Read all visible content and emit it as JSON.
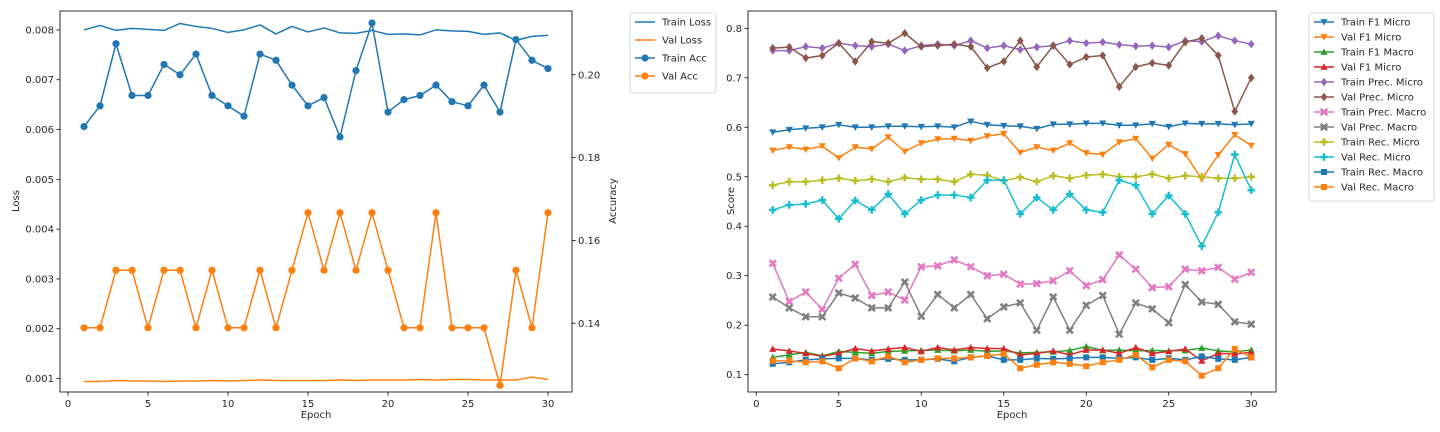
{
  "chart_data": [
    {
      "type": "line",
      "xlabel": "Epoch",
      "ylabel_left": "Loss",
      "ylabel_right": "Accuracy",
      "xlim": [
        -0.5,
        31.5
      ],
      "ylim_left": [
        0.00073,
        0.00838
      ],
      "ylim_right": [
        0.1234,
        0.2154
      ],
      "xticks": [
        "0",
        "5",
        "10",
        "15",
        "20",
        "25",
        "30"
      ],
      "yticks_left": [
        "0.001",
        "0.002",
        "0.003",
        "0.004",
        "0.005",
        "0.006",
        "0.007",
        "0.008"
      ],
      "yticks_right": [
        "0.14",
        "0.16",
        "0.18",
        "0.20"
      ],
      "legend_position": "right-outside-top",
      "x": [
        1,
        2,
        3,
        4,
        5,
        6,
        7,
        8,
        9,
        10,
        11,
        12,
        13,
        14,
        15,
        16,
        17,
        18,
        19,
        20,
        21,
        22,
        23,
        24,
        25,
        26,
        27,
        28,
        29,
        30
      ],
      "series": [
        {
          "name": "Train Loss",
          "axis": "left",
          "color": "#1f77b4",
          "marker": "none",
          "values": [
            0.008,
            0.00809,
            0.00799,
            0.00803,
            0.00801,
            0.00799,
            0.00813,
            0.00807,
            0.00803,
            0.00795,
            0.008,
            0.0081,
            0.00792,
            0.00807,
            0.00796,
            0.00804,
            0.00794,
            0.00793,
            0.00799,
            0.00791,
            0.00792,
            0.0079,
            0.008,
            0.00798,
            0.00797,
            0.00791,
            0.00794,
            0.00779,
            0.00787,
            0.00789
          ]
        },
        {
          "name": "Val Loss",
          "axis": "left",
          "color": "#ff7f0e",
          "marker": "none",
          "values": [
            0.00094,
            0.00094,
            0.00096,
            0.00095,
            0.00095,
            0.00094,
            0.00095,
            0.00095,
            0.00096,
            0.00095,
            0.00096,
            0.00097,
            0.00096,
            0.00096,
            0.00096,
            0.00096,
            0.00097,
            0.00096,
            0.00097,
            0.00097,
            0.00097,
            0.00098,
            0.00097,
            0.00098,
            0.00098,
            0.00097,
            0.00097,
            0.00097,
            0.00103,
            0.00098
          ]
        },
        {
          "name": "Train Acc",
          "axis": "right",
          "color": "#1f77b4",
          "marker": "circle",
          "values": [
            0.1875,
            0.1925,
            0.2075,
            0.195,
            0.195,
            0.2025,
            0.2,
            0.205,
            0.195,
            0.1925,
            0.19,
            0.205,
            0.2035,
            0.1975,
            0.1925,
            0.1945,
            0.185,
            0.201,
            0.2125,
            0.191,
            0.194,
            0.195,
            0.1975,
            0.1935,
            0.1925,
            0.1975,
            0.191,
            0.2085,
            0.2035,
            0.2015
          ]
        },
        {
          "name": "Val Acc",
          "axis": "right",
          "color": "#ff7f0e",
          "marker": "circle",
          "values": [
            0.1389,
            0.1389,
            0.1528,
            0.1528,
            0.1389,
            0.1528,
            0.1528,
            0.1389,
            0.1528,
            0.1389,
            0.1389,
            0.1528,
            0.1389,
            0.1528,
            0.1667,
            0.1528,
            0.1667,
            0.1528,
            0.1667,
            0.1528,
            0.1389,
            0.1389,
            0.1667,
            0.1389,
            0.1389,
            0.1389,
            0.125,
            0.1528,
            0.1389,
            0.1667
          ]
        }
      ]
    },
    {
      "type": "line",
      "xlabel": "Epoch",
      "ylabel": "Score",
      "xlim": [
        -0.5,
        31.5
      ],
      "ylim": [
        0.065,
        0.835
      ],
      "xticks": [
        "0",
        "5",
        "10",
        "15",
        "20",
        "25",
        "30"
      ],
      "yticks": [
        "0.1",
        "0.2",
        "0.3",
        "0.4",
        "0.5",
        "0.6",
        "0.7",
        "0.8"
      ],
      "legend_position": "right-outside-top",
      "x": [
        1,
        2,
        3,
        4,
        5,
        6,
        7,
        8,
        9,
        10,
        11,
        12,
        13,
        14,
        15,
        16,
        17,
        18,
        19,
        20,
        21,
        22,
        23,
        24,
        25,
        26,
        27,
        28,
        29,
        30
      ],
      "series": [
        {
          "name": "Train F1 Micro",
          "color": "#1f77b4",
          "marker": "tri_down",
          "values": [
            0.59,
            0.595,
            0.598,
            0.6,
            0.605,
            0.6,
            0.6,
            0.602,
            0.602,
            0.601,
            0.602,
            0.6,
            0.612,
            0.605,
            0.603,
            0.602,
            0.597,
            0.606,
            0.606,
            0.608,
            0.608,
            0.604,
            0.604,
            0.607,
            0.601,
            0.608,
            0.607,
            0.607,
            0.605,
            0.607
          ]
        },
        {
          "name": "Val F1 Micro",
          "color": "#ff7f0e",
          "marker": "tri_down",
          "values": [
            0.553,
            0.56,
            0.555,
            0.562,
            0.538,
            0.56,
            0.556,
            0.58,
            0.551,
            0.568,
            0.576,
            0.577,
            0.573,
            0.582,
            0.587,
            0.549,
            0.56,
            0.553,
            0.568,
            0.548,
            0.545,
            0.57,
            0.577,
            0.537,
            0.565,
            0.546,
            0.495,
            0.544,
            0.585,
            0.563
          ]
        },
        {
          "name": "Train F1 Macro",
          "color": "#2ca02c",
          "marker": "tri_up",
          "values": [
            0.135,
            0.14,
            0.145,
            0.138,
            0.147,
            0.145,
            0.143,
            0.147,
            0.148,
            0.149,
            0.15,
            0.148,
            0.15,
            0.147,
            0.148,
            0.144,
            0.145,
            0.146,
            0.149,
            0.157,
            0.149,
            0.15,
            0.148,
            0.149,
            0.148,
            0.149,
            0.154,
            0.148,
            0.146,
            0.15
          ]
        },
        {
          "name": "Val F1 Micro",
          "color": "#d62728",
          "marker": "tri_up",
          "values": [
            0.152,
            0.148,
            0.143,
            0.137,
            0.143,
            0.153,
            0.148,
            0.152,
            0.155,
            0.147,
            0.155,
            0.15,
            0.155,
            0.153,
            0.153,
            0.14,
            0.143,
            0.148,
            0.14,
            0.15,
            0.15,
            0.143,
            0.155,
            0.143,
            0.147,
            0.152,
            0.128,
            0.143,
            0.142,
            0.145
          ]
        },
        {
          "name": "Train Prec. Micro",
          "color": "#9467bd",
          "marker": "diamond",
          "values": [
            0.755,
            0.755,
            0.763,
            0.76,
            0.77,
            0.765,
            0.763,
            0.768,
            0.755,
            0.765,
            0.768,
            0.765,
            0.775,
            0.76,
            0.765,
            0.757,
            0.762,
            0.765,
            0.775,
            0.77,
            0.772,
            0.767,
            0.764,
            0.765,
            0.762,
            0.775,
            0.773,
            0.785,
            0.775,
            0.768
          ]
        },
        {
          "name": "Val Prec. Micro",
          "color": "#8c564b",
          "marker": "diamond",
          "values": [
            0.76,
            0.762,
            0.74,
            0.745,
            0.77,
            0.733,
            0.773,
            0.77,
            0.79,
            0.763,
            0.765,
            0.768,
            0.763,
            0.72,
            0.733,
            0.775,
            0.722,
            0.765,
            0.727,
            0.742,
            0.745,
            0.682,
            0.722,
            0.73,
            0.725,
            0.772,
            0.78,
            0.745,
            0.632,
            0.7
          ]
        },
        {
          "name": "Train Prec. Macro",
          "color": "#e377c2",
          "marker": "x",
          "values": [
            0.325,
            0.248,
            0.267,
            0.232,
            0.295,
            0.323,
            0.26,
            0.267,
            0.251,
            0.318,
            0.32,
            0.332,
            0.318,
            0.3,
            0.303,
            0.283,
            0.284,
            0.29,
            0.31,
            0.28,
            0.292,
            0.342,
            0.313,
            0.276,
            0.278,
            0.313,
            0.31,
            0.317,
            0.293,
            0.307
          ]
        },
        {
          "name": "Val Prec. Macro",
          "color": "#7f7f7f",
          "marker": "x",
          "values": [
            0.257,
            0.235,
            0.217,
            0.217,
            0.265,
            0.255,
            0.235,
            0.235,
            0.287,
            0.218,
            0.262,
            0.235,
            0.262,
            0.213,
            0.237,
            0.245,
            0.19,
            0.257,
            0.19,
            0.24,
            0.26,
            0.182,
            0.245,
            0.233,
            0.205,
            0.282,
            0.247,
            0.242,
            0.207,
            0.202
          ]
        },
        {
          "name": "Train Rec. Micro",
          "color": "#bcbd22",
          "marker": "plus",
          "values": [
            0.483,
            0.49,
            0.49,
            0.493,
            0.497,
            0.492,
            0.495,
            0.49,
            0.498,
            0.495,
            0.495,
            0.49,
            0.505,
            0.503,
            0.492,
            0.499,
            0.49,
            0.502,
            0.497,
            0.503,
            0.505,
            0.5,
            0.5,
            0.505,
            0.497,
            0.502,
            0.5,
            0.497,
            0.497,
            0.5
          ]
        },
        {
          "name": "Val Rec. Micro",
          "color": "#17becf",
          "marker": "plus",
          "values": [
            0.433,
            0.443,
            0.445,
            0.453,
            0.415,
            0.452,
            0.433,
            0.465,
            0.425,
            0.453,
            0.463,
            0.463,
            0.458,
            0.493,
            0.493,
            0.425,
            0.458,
            0.433,
            0.465,
            0.433,
            0.428,
            0.493,
            0.483,
            0.425,
            0.462,
            0.425,
            0.36,
            0.428,
            0.545,
            0.473
          ]
        },
        {
          "name": "Train Rec. Macro",
          "color": "#1f77b4",
          "marker": "square",
          "values": [
            0.122,
            0.125,
            0.13,
            0.132,
            0.133,
            0.133,
            0.13,
            0.132,
            0.13,
            0.13,
            0.132,
            0.127,
            0.135,
            0.138,
            0.13,
            0.13,
            0.133,
            0.132,
            0.133,
            0.135,
            0.135,
            0.133,
            0.135,
            0.13,
            0.133,
            0.13,
            0.137,
            0.132,
            0.13,
            0.135
          ]
        },
        {
          "name": "Val Rec. Macro",
          "color": "#ff7f0e",
          "marker": "square",
          "values": [
            0.128,
            0.128,
            0.125,
            0.127,
            0.113,
            0.133,
            0.127,
            0.137,
            0.125,
            0.13,
            0.133,
            0.133,
            0.135,
            0.138,
            0.142,
            0.113,
            0.12,
            0.125,
            0.122,
            0.117,
            0.125,
            0.13,
            0.14,
            0.115,
            0.13,
            0.127,
            0.098,
            0.113,
            0.152,
            0.135
          ]
        }
      ]
    }
  ]
}
